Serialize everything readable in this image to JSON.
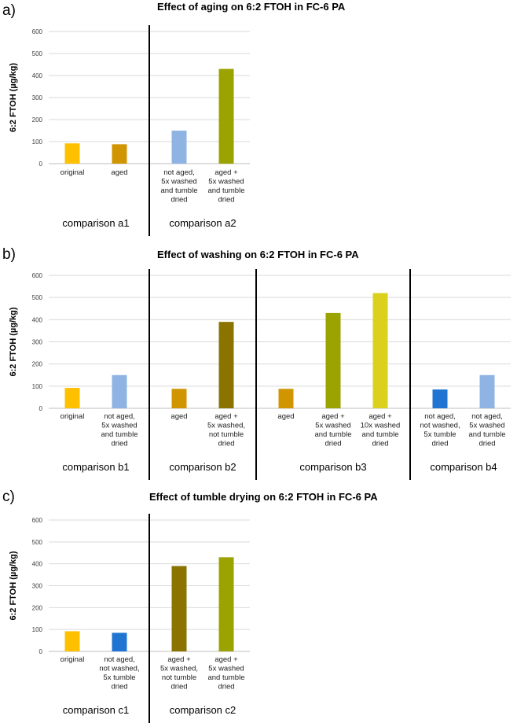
{
  "chart_data": [
    {
      "type": "bar",
      "panel_label": "a)",
      "title": "Effect of aging on 6:2 FTOH in FC-6 PA",
      "ylabel": "6:2 FTOH (µg/kg)",
      "xlabel": "",
      "ylim": [
        0,
        600
      ],
      "yticks": [
        "0",
        "100",
        "200",
        "300",
        "400",
        "500",
        "600"
      ],
      "grid": true,
      "categories": [
        [
          "original"
        ],
        [
          "aged"
        ],
        [
          "not aged,",
          "5x washed",
          "and tumble",
          "dried"
        ],
        [
          "aged +",
          "5x washed",
          "and tumble",
          "dried"
        ]
      ],
      "values": [
        92,
        88,
        150,
        430
      ],
      "colors": [
        "#FFC000",
        "#D09500",
        "#8FB4E3",
        "#9BA300"
      ],
      "groups": [
        {
          "label": "comparison a1",
          "count": 2
        },
        {
          "label": "comparison a2",
          "count": 2
        }
      ]
    },
    {
      "type": "bar",
      "panel_label": "b)",
      "title": "Effect of washing on 6:2 FTOH in FC-6 PA",
      "ylabel": "6:2 FTOH (µg/kg)",
      "xlabel": "",
      "ylim": [
        0,
        600
      ],
      "yticks": [
        "0",
        "100",
        "200",
        "300",
        "400",
        "500",
        "600"
      ],
      "grid": true,
      "categories": [
        [
          "original"
        ],
        [
          "not aged,",
          "5x washed",
          "and tumble",
          "dried"
        ],
        [
          "aged"
        ],
        [
          "aged +",
          "5x washed,",
          "not tumble",
          "dried"
        ],
        [
          "aged"
        ],
        [
          "aged +",
          "5x washed",
          "and tumble",
          "dried"
        ],
        [
          "aged +",
          "10x washed",
          "and tumble",
          "dried"
        ],
        [
          "not aged,",
          "not washed,",
          "5x tumble",
          "dried"
        ],
        [
          "not aged,",
          "5x washed",
          "and tumble",
          "dried"
        ]
      ],
      "values": [
        92,
        150,
        88,
        390,
        88,
        430,
        520,
        85,
        150
      ],
      "colors": [
        "#FFC000",
        "#8FB4E3",
        "#D09500",
        "#8B7300",
        "#D09500",
        "#9BA300",
        "#DBD11C",
        "#1F75D1",
        "#8FB4E3"
      ],
      "groups": [
        {
          "label": "comparison b1",
          "count": 2
        },
        {
          "label": "comparison b2",
          "count": 2
        },
        {
          "label": "comparison b3",
          "count": 3
        },
        {
          "label": "comparison b4",
          "count": 2
        }
      ]
    },
    {
      "type": "bar",
      "panel_label": "c)",
      "title": "Effect of tumble drying on 6:2 FTOH in FC-6 PA",
      "ylabel": "6:2 FTOH (µg/kg)",
      "xlabel": "",
      "ylim": [
        0,
        600
      ],
      "yticks": [
        "0",
        "100",
        "200",
        "300",
        "400",
        "500",
        "600"
      ],
      "grid": true,
      "categories": [
        [
          "original"
        ],
        [
          "not aged,",
          "not washed,",
          "5x tumble",
          "dried"
        ],
        [
          "aged +",
          "5x washed,",
          "not tumble",
          "dried"
        ],
        [
          "aged +",
          "5x washed",
          "and tumble",
          "dried"
        ]
      ],
      "values": [
        92,
        85,
        390,
        430
      ],
      "colors": [
        "#FFC000",
        "#1F75D1",
        "#8B7300",
        "#9BA300"
      ],
      "groups": [
        {
          "label": "comparison c1",
          "count": 2
        },
        {
          "label": "comparison c2",
          "count": 2
        }
      ]
    }
  ]
}
